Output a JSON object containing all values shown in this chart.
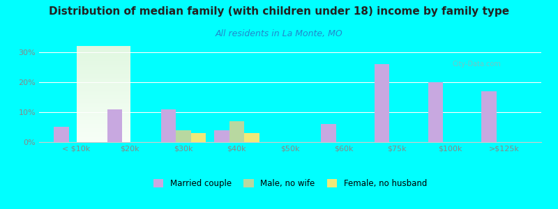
{
  "title": "Distribution of median family (with children under 18) income by family type",
  "subtitle": "All residents in La Monte, MO",
  "categories": [
    "< $10k",
    "$20k",
    "$30k",
    "$40k",
    "$50k",
    "$60k",
    "$75k",
    "$100k",
    ">$125k"
  ],
  "married_couple": [
    5,
    11,
    11,
    4,
    0,
    6,
    26,
    20,
    17
  ],
  "male_no_wife": [
    0,
    0,
    4,
    7,
    0,
    0,
    0,
    0,
    0
  ],
  "female_no_husb": [
    0,
    0,
    3,
    3,
    0,
    0,
    0,
    0,
    0
  ],
  "married_color": "#c8a8e0",
  "male_color": "#b8d8a0",
  "female_color": "#f0e878",
  "bg_color_top": "#e8f8e8",
  "bg_color_bottom": "#f8fff8",
  "outer_bg": "#00ffff",
  "title_color": "#222222",
  "subtitle_color": "#2288cc",
  "tick_color": "#888888",
  "ylim": [
    0,
    32
  ],
  "yticks": [
    0,
    10,
    20,
    30
  ],
  "bar_width": 0.28,
  "legend_labels": [
    "Married couple",
    "Male, no wife",
    "Female, no husband"
  ]
}
